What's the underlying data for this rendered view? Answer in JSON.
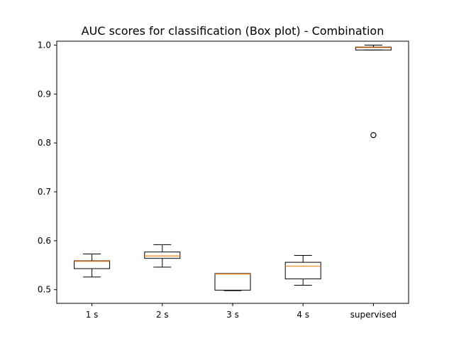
{
  "chart_data": {
    "type": "box",
    "title": "AUC scores for classification (Box plot) - Combination",
    "xlabel": "",
    "ylabel": "",
    "categories": [
      "1 s",
      "2 s",
      "3 s",
      "4 s",
      "supervised"
    ],
    "ylim": [
      0.472,
      1.008
    ],
    "yticks": [
      0.5,
      0.6,
      0.7,
      0.8,
      0.9,
      1.0
    ],
    "ytick_labels": [
      "0.5",
      "0.6",
      "0.7",
      "0.8",
      "0.9",
      "1.0"
    ],
    "grid": false,
    "legend": "none",
    "boxes": [
      {
        "whisker_low": 0.526,
        "q1": 0.543,
        "median": 0.558,
        "q3": 0.559,
        "whisker_high": 0.573,
        "outliers": []
      },
      {
        "whisker_low": 0.546,
        "q1": 0.564,
        "median": 0.569,
        "q3": 0.577,
        "whisker_high": 0.592,
        "outliers": []
      },
      {
        "whisker_low": 0.498,
        "q1": 0.499,
        "median": 0.532,
        "q3": 0.533,
        "whisker_high": 0.533,
        "outliers": []
      },
      {
        "whisker_low": 0.509,
        "q1": 0.522,
        "median": 0.548,
        "q3": 0.556,
        "whisker_high": 0.57,
        "outliers": []
      },
      {
        "whisker_low": 0.99,
        "q1": 0.99,
        "median": 0.995,
        "q3": 0.996,
        "whisker_high": 1.0,
        "outliers": [
          0.816
        ]
      }
    ],
    "colors": {
      "box": "#000000",
      "median": "#ff7f0e",
      "outlier": "#000000",
      "axes": "#000000"
    }
  }
}
